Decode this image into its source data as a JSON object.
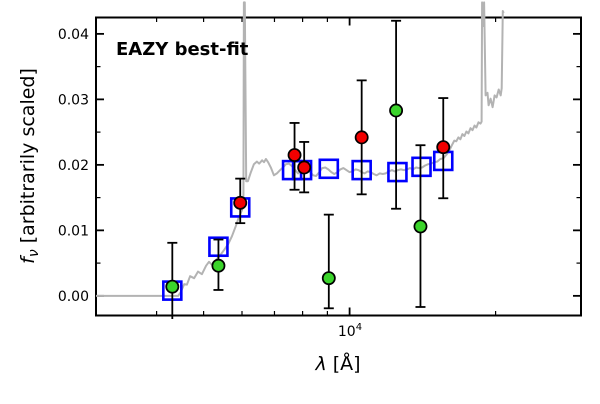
{
  "figure": {
    "annotation": {
      "text": "EAZY best-fit",
      "color": "#ff0000"
    },
    "xlabel": {
      "symbol": "λ",
      "unit": " [Å]"
    },
    "ylabel": {
      "symbol": "f",
      "sub": "ν",
      "rest": " [arbitrarily scaled]"
    },
    "colors": {
      "spectrum": "#b3b3b3",
      "model_square": "#0000ff",
      "observed_red": "#f20000",
      "observed_green": "#3bd42b",
      "frame": "#000000"
    }
  },
  "chart_data": {
    "type": "line",
    "title": "",
    "xlabel": "lambda [Angstrom]",
    "ylabel": "f_nu [arbitrarily scaled]",
    "xscale": "log",
    "yscale": "linear",
    "xlim": [
      3000,
      30000
    ],
    "ylim": [
      -0.003,
      0.0425
    ],
    "grid": false,
    "legend": null,
    "x_ticks_major": [
      {
        "value": 10000,
        "label_base": "10",
        "label_exp": "4"
      }
    ],
    "x_ticks_minor": [
      4000,
      5000,
      6000,
      7000,
      8000,
      9000,
      20000
    ],
    "y_ticks_major": [
      {
        "value": 0.0,
        "label": "0.00"
      },
      {
        "value": 0.01,
        "label": "0.01"
      },
      {
        "value": 0.02,
        "label": "0.02"
      },
      {
        "value": 0.03,
        "label": "0.03"
      },
      {
        "value": 0.04,
        "label": "0.04"
      }
    ],
    "y_ticks_minor": [
      0.005,
      0.015,
      0.025,
      0.035
    ],
    "series": [
      {
        "name": "eazy-template-spectrum",
        "type": "line",
        "color": "#b3b3b3",
        "width": 2,
        "points": [
          [
            3000,
            0.0
          ],
          [
            4430,
            0.0
          ],
          [
            4490,
            0.0006
          ],
          [
            4560,
            0.0018
          ],
          [
            4620,
            0.0017
          ],
          [
            4690,
            0.003
          ],
          [
            4780,
            0.0027
          ],
          [
            4870,
            0.0037
          ],
          [
            4960,
            0.0033
          ],
          [
            5060,
            0.0046
          ],
          [
            5130,
            0.0052
          ],
          [
            5210,
            0.0047
          ],
          [
            5310,
            0.0055
          ],
          [
            5410,
            0.0062
          ],
          [
            5510,
            0.007
          ],
          [
            5620,
            0.0079
          ],
          [
            5720,
            0.0091
          ],
          [
            5830,
            0.0107
          ],
          [
            5910,
            0.012
          ],
          [
            6000,
            0.0131
          ],
          [
            6040,
            0.0139
          ],
          [
            6055,
            0.0448
          ],
          [
            6080,
            0.0448
          ],
          [
            6120,
            0.0175
          ],
          [
            6170,
            0.0175
          ],
          [
            6260,
            0.0189
          ],
          [
            6350,
            0.0201
          ],
          [
            6440,
            0.0205
          ],
          [
            6510,
            0.0202
          ],
          [
            6600,
            0.0207
          ],
          [
            6660,
            0.0204
          ],
          [
            6720,
            0.0209
          ],
          [
            6790,
            0.0204
          ],
          [
            6890,
            0.0195
          ],
          [
            6980,
            0.0184
          ],
          [
            7080,
            0.0187
          ],
          [
            7190,
            0.0192
          ],
          [
            7290,
            0.0196
          ],
          [
            7390,
            0.0201
          ],
          [
            7500,
            0.0202
          ],
          [
            7610,
            0.0198
          ],
          [
            7720,
            0.0192
          ],
          [
            7830,
            0.0187
          ],
          [
            7940,
            0.0192
          ],
          [
            8060,
            0.0196
          ],
          [
            8170,
            0.0193
          ],
          [
            8290,
            0.0189
          ],
          [
            8410,
            0.0184
          ],
          [
            8530,
            0.0183
          ],
          [
            8660,
            0.0189
          ],
          [
            8780,
            0.0195
          ],
          [
            8910,
            0.0196
          ],
          [
            9040,
            0.0193
          ],
          [
            9170,
            0.0189
          ],
          [
            9300,
            0.0186
          ],
          [
            9440,
            0.0189
          ],
          [
            9570,
            0.0193
          ],
          [
            9710,
            0.0195
          ],
          [
            9850,
            0.0192
          ],
          [
            9990,
            0.0189
          ],
          [
            10140,
            0.019
          ],
          [
            10290,
            0.0193
          ],
          [
            10430,
            0.0192
          ],
          [
            10590,
            0.0189
          ],
          [
            10740,
            0.0187
          ],
          [
            10890,
            0.019
          ],
          [
            11050,
            0.0189
          ],
          [
            11210,
            0.0186
          ],
          [
            11370,
            0.0184
          ],
          [
            11540,
            0.0187
          ],
          [
            11710,
            0.0186
          ],
          [
            11870,
            0.0187
          ],
          [
            12050,
            0.019
          ],
          [
            12220,
            0.0192
          ],
          [
            12400,
            0.019
          ],
          [
            12580,
            0.0192
          ],
          [
            12760,
            0.0193
          ],
          [
            12940,
            0.0192
          ],
          [
            13130,
            0.0193
          ],
          [
            13320,
            0.0195
          ],
          [
            13510,
            0.0193
          ],
          [
            13710,
            0.0196
          ],
          [
            13910,
            0.0195
          ],
          [
            14110,
            0.0196
          ],
          [
            14310,
            0.0199
          ],
          [
            14520,
            0.0201
          ],
          [
            14730,
            0.0202
          ],
          [
            14940,
            0.0204
          ],
          [
            15160,
            0.0205
          ],
          [
            15380,
            0.0209
          ],
          [
            15600,
            0.021
          ],
          [
            15820,
            0.0215
          ],
          [
            16050,
            0.0222
          ],
          [
            16280,
            0.0231
          ],
          [
            16440,
            0.0237
          ],
          [
            16600,
            0.0236
          ],
          [
            16760,
            0.0242
          ],
          [
            16920,
            0.0239
          ],
          [
            17080,
            0.0247
          ],
          [
            17250,
            0.0244
          ],
          [
            17410,
            0.0251
          ],
          [
            17580,
            0.0248
          ],
          [
            17750,
            0.0256
          ],
          [
            17920,
            0.0253
          ],
          [
            18090,
            0.026
          ],
          [
            18260,
            0.0257
          ],
          [
            18440,
            0.0265
          ],
          [
            18620,
            0.0263
          ],
          [
            18710,
            0.0266
          ],
          [
            18760,
            0.0448
          ],
          [
            18850,
            0.0412
          ],
          [
            18940,
            0.0448
          ],
          [
            19070,
            0.0306
          ],
          [
            19250,
            0.031
          ],
          [
            19350,
            0.0291
          ],
          [
            19530,
            0.0301
          ],
          [
            19720,
            0.0288
          ],
          [
            19910,
            0.0306
          ],
          [
            20100,
            0.0303
          ],
          [
            20300,
            0.0315
          ],
          [
            20490,
            0.0306
          ],
          [
            20590,
            0.0317
          ],
          [
            20700,
            0.0435
          ],
          [
            20780,
            0.0432
          ]
        ]
      },
      {
        "name": "model-photometry",
        "type": "scatter",
        "marker": "open-square",
        "color": "#0000ff",
        "points": [
          [
            4310,
            0.0008
          ],
          [
            5365,
            0.0075
          ],
          [
            5950,
            0.0135
          ],
          [
            7610,
            0.0192
          ],
          [
            7980,
            0.0192
          ],
          [
            9060,
            0.0194
          ],
          [
            10590,
            0.0192
          ],
          [
            12550,
            0.0189
          ],
          [
            14070,
            0.0197
          ],
          [
            15600,
            0.0206
          ]
        ]
      },
      {
        "name": "observed-photometry-green",
        "type": "scatter",
        "marker": "circle",
        "fill": "#3bd42b",
        "edge": "#000000",
        "points": [
          {
            "x": 4310,
            "y": 0.0014,
            "lo": null,
            "hi": 0.0081
          },
          {
            "x": 5365,
            "y": 0.0046,
            "lo": 0.0009,
            "hi": 0.0086
          },
          {
            "x": 9060,
            "y": 0.0027,
            "lo": -0.0019,
            "hi": 0.0124
          },
          {
            "x": 12470,
            "y": 0.0283,
            "lo": 0.0133,
            "hi": 0.042
          },
          {
            "x": 14000,
            "y": 0.0106,
            "lo": -0.0017,
            "hi": 0.023
          }
        ]
      },
      {
        "name": "observed-photometry-red",
        "type": "scatter",
        "marker": "circle",
        "fill": "#f20000",
        "edge": "#000000",
        "points": [
          {
            "x": 5950,
            "y": 0.0142,
            "lo": 0.0111,
            "hi": 0.0179
          },
          {
            "x": 7700,
            "y": 0.0215,
            "lo": 0.0162,
            "hi": 0.0264
          },
          {
            "x": 8060,
            "y": 0.0196,
            "lo": 0.0158,
            "hi": 0.0235
          },
          {
            "x": 10590,
            "y": 0.0242,
            "lo": 0.0155,
            "hi": 0.0329
          },
          {
            "x": 15600,
            "y": 0.0227,
            "lo": 0.0149,
            "hi": 0.0302
          }
        ]
      }
    ]
  }
}
